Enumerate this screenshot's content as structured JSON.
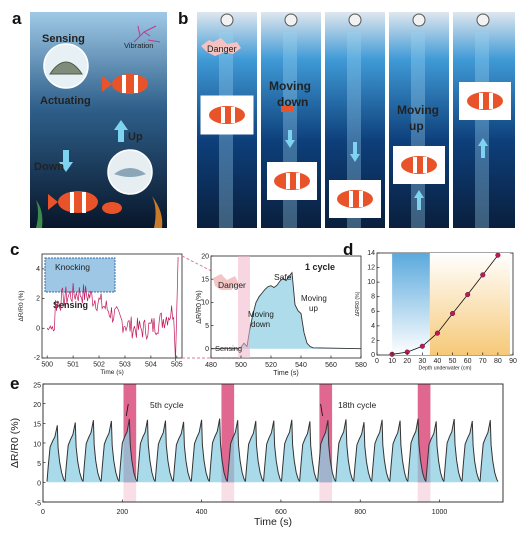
{
  "panels": {
    "a": {
      "letter": "a",
      "sensing": "Sensing",
      "vibration": "Vibration",
      "actuating": "Actuating",
      "up": "Up",
      "down": "Down"
    },
    "b": {
      "letter": "b",
      "danger": "Danger",
      "moving_down": [
        "Moving",
        "down"
      ],
      "moving_up": [
        "Moving",
        "up"
      ]
    },
    "c": {
      "letter": "c",
      "knocking": "Knocking",
      "sensing": "Sensing",
      "danger": "Danger",
      "safe": "Safe",
      "moving_down": [
        "Moving",
        "down"
      ],
      "moving_up": [
        "Moving",
        "up"
      ],
      "cycle": "1 cycle",
      "sensing_small": "Sensing"
    },
    "d": {
      "letter": "d"
    },
    "e": {
      "letter": "e",
      "cycle5": "5th cycle",
      "cycle18": "18th cycle"
    }
  },
  "chart_data": [
    {
      "id": "c-left",
      "type": "line",
      "xlabel": "Time (s)",
      "ylabel": "ΔR/R0 (%)",
      "xlim": [
        499.8,
        505.2
      ],
      "ylim": [
        -2,
        5
      ],
      "xticks": [
        500,
        501,
        502,
        503,
        504,
        505
      ],
      "yticks": [
        -2,
        0,
        2,
        4
      ],
      "color": "#c2185b"
    },
    {
      "id": "c-right",
      "type": "area",
      "xlabel": "Time (s)",
      "ylabel": "ΔR/R0 (%)",
      "xlim": [
        480,
        580
      ],
      "ylim": [
        -2,
        20
      ],
      "xticks": [
        480,
        500,
        520,
        540,
        560,
        580
      ],
      "yticks": [
        0,
        5,
        10,
        15,
        20
      ],
      "x": [
        480,
        498,
        500,
        502,
        504,
        505,
        506,
        508,
        510,
        512,
        514,
        516,
        518,
        520,
        522,
        524,
        526,
        528,
        530,
        532,
        534,
        536,
        538,
        540,
        542,
        544,
        546,
        548,
        580
      ],
      "y": [
        0,
        0,
        0.3,
        1.2,
        0.5,
        2.5,
        4.5,
        7.5,
        10,
        11.2,
        12,
        12.8,
        13.4,
        13.6,
        13.2,
        13.7,
        14.6,
        15.2,
        14.7,
        15.6,
        16.4,
        9.5,
        8.2,
        7.6,
        3.5,
        1.2,
        0.5,
        0.2,
        0
      ],
      "color": "#26a1c4"
    },
    {
      "id": "d",
      "type": "scatter",
      "xlabel": "Depth underwater (cm)",
      "ylabel": "ΔR/R0 (%)",
      "xlim": [
        0,
        90
      ],
      "ylim": [
        0,
        14
      ],
      "xticks": [
        0,
        10,
        20,
        30,
        40,
        50,
        60,
        70,
        80,
        90
      ],
      "yticks": [
        0,
        2,
        4,
        6,
        8,
        10,
        12,
        14
      ],
      "x": [
        10,
        20,
        30,
        40,
        50,
        60,
        70,
        80
      ],
      "y": [
        0.1,
        0.4,
        1.2,
        3.0,
        5.7,
        8.3,
        11.0,
        13.7
      ],
      "color": "#c2185b"
    },
    {
      "id": "e",
      "type": "line",
      "xlabel": "Time (s)",
      "ylabel": "ΔR/R0 (%)",
      "xlim": [
        0,
        1160
      ],
      "ylim": [
        -5,
        25
      ],
      "xticks": [
        0,
        200,
        400,
        600,
        800,
        1000
      ],
      "yticks": [
        -5,
        0,
        5,
        10,
        15,
        20,
        25
      ],
      "cycles": 25,
      "cycle_period": 45.5,
      "peak_values": [
        14.5,
        15.2,
        15.8,
        15.6,
        16.1,
        15.9,
        15.7,
        15.4,
        15.9,
        16.2,
        15.8,
        15.6,
        15.7,
        15.9,
        15.5,
        15.8,
        16.0,
        15.3,
        15.9,
        15.7,
        16.2,
        15.5,
        16.1,
        15.6,
        15.8
      ],
      "highlight_starts": [
        203,
        450,
        697,
        945
      ],
      "color": "#26a1c4"
    }
  ]
}
